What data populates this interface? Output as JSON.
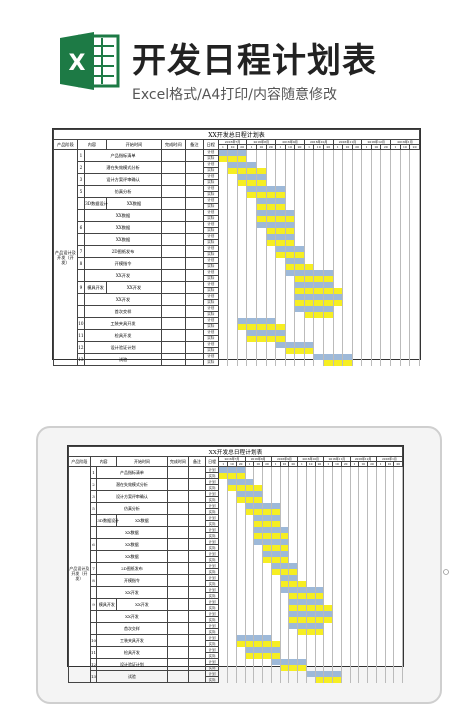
{
  "header": {
    "title": "开发日程计划表",
    "subtitle": "Excel格式/A4打印/内容随意修改"
  },
  "sheet": {
    "title": "XX开发总日程计划表",
    "columns": [
      "产品阶段",
      "",
      "内容",
      "开始时间",
      "完成时间",
      "备注",
      "日程"
    ],
    "phase_label": "产品设计及开发（开发）",
    "row_kinds": [
      "计划",
      "实际"
    ],
    "months": [
      "2016年7月",
      "2016年8月",
      "2016年9月",
      "2016年10月",
      "2016年11月",
      "2016年12月",
      "2016年1月"
    ],
    "days": [
      "1",
      "10",
      "20"
    ],
    "tasks": [
      {
        "no": "1",
        "group": "",
        "name": "产品指标清单"
      },
      {
        "no": "2",
        "group": "",
        "name": "潜在失效模式分析"
      },
      {
        "no": "3",
        "group": "",
        "name": "设计方案评审确认"
      },
      {
        "no": "5",
        "group": "",
        "name": "仿真分析"
      },
      {
        "no": "",
        "group": "3D数据设计",
        "name": "XX数据"
      },
      {
        "no": "",
        "group": "",
        "name": "XX数据"
      },
      {
        "no": "6",
        "group": "",
        "name": "XX数据"
      },
      {
        "no": "",
        "group": "",
        "name": "XX数据"
      },
      {
        "no": "7",
        "group": "",
        "name": "2D图纸发布"
      },
      {
        "no": "8",
        "group": "",
        "name": "开模指令"
      },
      {
        "no": "",
        "group": "",
        "name": "XX开发"
      },
      {
        "no": "9",
        "group": "模具开发",
        "name": "XX开发"
      },
      {
        "no": "",
        "group": "",
        "name": "XX开发"
      },
      {
        "no": "",
        "group": "",
        "name": "首次交样"
      },
      {
        "no": "10",
        "group": "",
        "name": "工装夹具开发"
      },
      {
        "no": "11",
        "group": "",
        "name": "检具开发"
      },
      {
        "no": "12",
        "group": "",
        "name": "设计验证计划"
      },
      {
        "no": "13",
        "group": "",
        "name": "试验"
      }
    ]
  },
  "colors": {
    "plan": "#9db9d9",
    "actual": "#f6ee22",
    "excel_green": "#1d7a45"
  }
}
